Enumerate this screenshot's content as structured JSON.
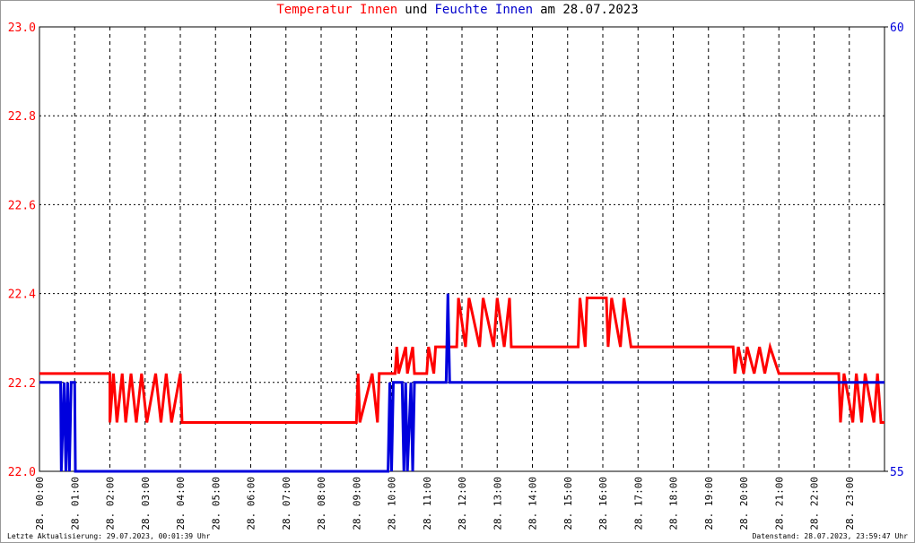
{
  "chart_data": {
    "type": "line",
    "title_parts": [
      {
        "text": "Temperatur Innen",
        "color": "#ff0000"
      },
      {
        "text": "und",
        "color": "#000000"
      },
      {
        "text": "Feuchte Innen",
        "color": "#0000cc"
      },
      {
        "text": "am 28.07.2023",
        "color": "#000000"
      }
    ],
    "footer_left": "Letzte Aktualisierung: 29.07.2023, 00:01:39 Uhr",
    "footer_right": "Datenstand: 28.07.2023, 23:59:47 Uhr",
    "xlim": [
      0,
      24
    ],
    "xticks": [
      {
        "value": 0,
        "label": "28. 00:00"
      },
      {
        "value": 1,
        "label": "28. 01:00"
      },
      {
        "value": 2,
        "label": "28. 02:00"
      },
      {
        "value": 3,
        "label": "28. 03:00"
      },
      {
        "value": 4,
        "label": "28. 04:00"
      },
      {
        "value": 5,
        "label": "28. 05:00"
      },
      {
        "value": 6,
        "label": "28. 06:00"
      },
      {
        "value": 7,
        "label": "28. 07:00"
      },
      {
        "value": 8,
        "label": "28. 08:00"
      },
      {
        "value": 9,
        "label": "28. 09:00"
      },
      {
        "value": 10,
        "label": "28. 10:00"
      },
      {
        "value": 11,
        "label": "28. 11:00"
      },
      {
        "value": 12,
        "label": "28. 12:00"
      },
      {
        "value": 13,
        "label": "28. 13:00"
      },
      {
        "value": 14,
        "label": "28. 14:00"
      },
      {
        "value": 15,
        "label": "28. 15:00"
      },
      {
        "value": 16,
        "label": "28. 16:00"
      },
      {
        "value": 17,
        "label": "28. 17:00"
      },
      {
        "value": 18,
        "label": "28. 18:00"
      },
      {
        "value": 19,
        "label": "28. 19:00"
      },
      {
        "value": 20,
        "label": "28. 20:00"
      },
      {
        "value": 21,
        "label": "28. 21:00"
      },
      {
        "value": 22,
        "label": "28. 22:00"
      },
      {
        "value": 23,
        "label": "28. 23:00"
      }
    ],
    "ylim": [
      22.0,
      23.0
    ],
    "yticks": [
      {
        "value": 22,
        "label": "22.0"
      },
      22.2,
      22.4,
      22.6,
      22.8,
      {
        "value": 23,
        "label": "23.0"
      }
    ],
    "y2lim": [
      55,
      60
    ],
    "y2ticks": [
      55,
      60
    ],
    "grid": true,
    "series": [
      {
        "name": "Temperatur Innen",
        "color": "#ff0000",
        "axis": "y",
        "x": [
          0,
          2.0,
          2.0,
          2.1,
          2.2,
          2.35,
          2.45,
          2.6,
          2.75,
          2.9,
          3.05,
          3.3,
          3.45,
          3.6,
          3.75,
          4.0,
          4.05,
          9.0,
          9.05,
          9.1,
          9.45,
          9.6,
          9.65,
          10.1,
          10.15,
          10.2,
          10.4,
          10.45,
          10.6,
          10.65,
          11.0,
          11.05,
          11.2,
          11.25,
          11.85,
          11.9,
          12.1,
          12.2,
          12.5,
          12.6,
          12.9,
          13.0,
          13.2,
          13.35,
          13.4,
          15.3,
          15.35,
          15.5,
          15.55,
          16.1,
          16.15,
          16.25,
          16.5,
          16.6,
          16.8,
          19.7,
          19.75,
          19.85,
          20.0,
          20.1,
          20.3,
          20.45,
          20.6,
          20.75,
          21.0,
          22.7,
          22.75,
          22.85,
          23.1,
          23.2,
          23.35,
          23.45,
          23.7,
          23.8,
          23.9,
          24.0
        ],
        "values": [
          22.22,
          22.22,
          22.11,
          22.22,
          22.11,
          22.22,
          22.11,
          22.22,
          22.11,
          22.22,
          22.11,
          22.22,
          22.11,
          22.22,
          22.11,
          22.22,
          22.11,
          22.11,
          22.22,
          22.11,
          22.22,
          22.11,
          22.22,
          22.22,
          22.28,
          22.22,
          22.28,
          22.22,
          22.28,
          22.22,
          22.22,
          22.28,
          22.22,
          22.28,
          22.28,
          22.39,
          22.28,
          22.39,
          22.28,
          22.39,
          22.28,
          22.39,
          22.28,
          22.39,
          22.28,
          22.28,
          22.39,
          22.28,
          22.39,
          22.39,
          22.28,
          22.39,
          22.28,
          22.39,
          22.28,
          22.28,
          22.22,
          22.28,
          22.22,
          22.28,
          22.22,
          22.28,
          22.22,
          22.28,
          22.22,
          22.22,
          22.11,
          22.22,
          22.11,
          22.22,
          22.11,
          22.22,
          22.11,
          22.22,
          22.11,
          22.11
        ]
      },
      {
        "name": "Feuchte Innen",
        "color": "#0000dd",
        "axis": "y2",
        "x": [
          0,
          0.6,
          0.62,
          0.7,
          0.75,
          0.8,
          0.85,
          0.9,
          1.0,
          1.02,
          9.9,
          9.95,
          10.0,
          10.05,
          10.3,
          10.35,
          10.4,
          10.45,
          10.55,
          10.6,
          10.65,
          11.55,
          11.6,
          11.65,
          24.0
        ],
        "values": [
          56,
          56,
          55,
          56,
          55,
          56,
          55,
          56,
          56,
          55,
          55,
          56,
          55,
          56,
          56,
          55,
          56,
          55,
          56,
          55,
          56,
          56,
          57,
          56,
          56
        ]
      }
    ]
  }
}
